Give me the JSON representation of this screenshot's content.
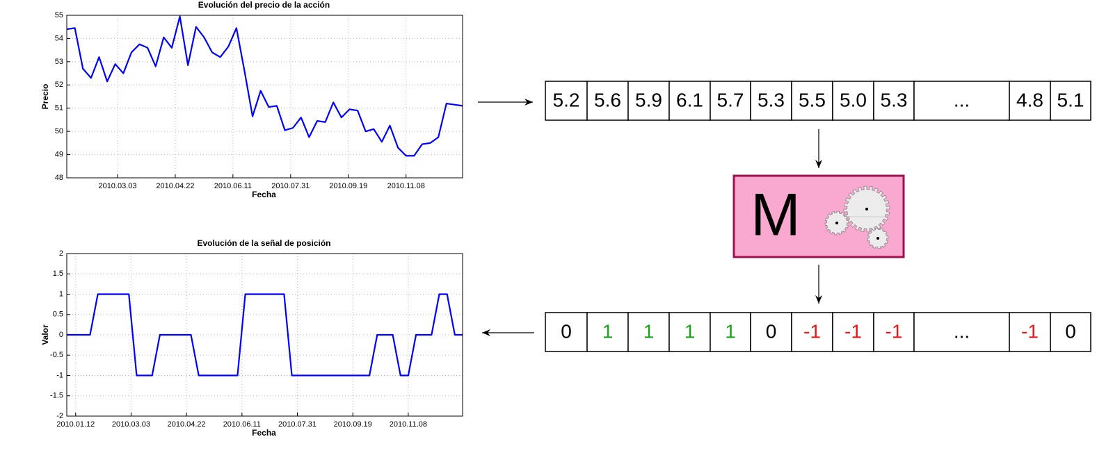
{
  "chart_data": [
    {
      "type": "line",
      "title": "Evolución del precio de la acción",
      "xlabel": "Fecha",
      "ylabel": "Precio",
      "color": "#0000ff",
      "grid": true,
      "x": [
        "2010.01.18",
        "2010.01.25",
        "2010.02.01",
        "2010.02.08",
        "2010.02.15",
        "2010.02.22",
        "2010.03.01",
        "2010.03.08",
        "2010.03.15",
        "2010.03.22",
        "2010.03.29",
        "2010.04.05",
        "2010.04.12",
        "2010.04.19",
        "2010.04.26",
        "2010.05.03",
        "2010.05.10",
        "2010.05.17",
        "2010.05.24",
        "2010.05.31",
        "2010.06.07",
        "2010.06.14",
        "2010.06.21",
        "2010.06.28",
        "2010.07.05",
        "2010.07.12",
        "2010.07.19",
        "2010.07.26",
        "2010.08.02",
        "2010.08.09",
        "2010.08.16",
        "2010.08.23",
        "2010.08.30",
        "2010.09.06",
        "2010.09.13",
        "2010.09.20",
        "2010.09.27",
        "2010.10.04",
        "2010.10.11",
        "2010.10.18",
        "2010.10.25",
        "2010.11.01",
        "2010.11.08",
        "2010.11.15",
        "2010.11.22",
        "2010.11.29",
        "2010.12.06",
        "2010.12.13",
        "2010.12.20",
        "2010.12.27"
      ],
      "values": [
        54.4,
        54.45,
        52.7,
        52.3,
        53.2,
        52.15,
        52.9,
        52.5,
        53.4,
        53.75,
        53.6,
        52.8,
        54.05,
        53.6,
        54.95,
        52.85,
        54.5,
        54.05,
        53.4,
        53.2,
        53.65,
        54.45,
        52.6,
        50.65,
        51.75,
        51.05,
        51.1,
        50.05,
        50.15,
        50.6,
        49.75,
        50.45,
        50.4,
        51.25,
        50.6,
        50.95,
        50.9,
        50.0,
        50.1,
        49.55,
        50.25,
        49.3,
        48.95,
        48.95,
        49.45,
        49.5,
        49.75,
        51.2,
        51.15,
        51.1
      ],
      "xlim": [
        "2010.01.18",
        "2010.12.27"
      ],
      "xticks": [
        "2010.03.03",
        "2010.04.22",
        "2010.06.11",
        "2010.07.31",
        "2010.09.19",
        "2010.11.08"
      ],
      "ylim": [
        48,
        55
      ],
      "yticks": [
        48,
        49,
        50,
        51,
        52,
        53,
        54,
        55
      ]
    },
    {
      "type": "line",
      "title": "Evolución de la señal de posición",
      "xlabel": "Fecha",
      "ylabel": "Valor",
      "color": "#0000ff",
      "grid": true,
      "x": [
        "2010.01.04",
        "2010.01.11",
        "2010.01.18",
        "2010.01.25",
        "2010.02.01",
        "2010.02.08",
        "2010.02.15",
        "2010.02.22",
        "2010.03.01",
        "2010.03.08",
        "2010.03.15",
        "2010.03.22",
        "2010.03.29",
        "2010.04.05",
        "2010.04.12",
        "2010.04.19",
        "2010.04.26",
        "2010.05.03",
        "2010.05.10",
        "2010.05.17",
        "2010.05.24",
        "2010.05.31",
        "2010.06.07",
        "2010.06.14",
        "2010.06.21",
        "2010.06.28",
        "2010.07.05",
        "2010.07.12",
        "2010.07.19",
        "2010.07.26",
        "2010.08.02",
        "2010.08.09",
        "2010.08.16",
        "2010.08.23",
        "2010.08.30",
        "2010.09.06",
        "2010.09.13",
        "2010.09.20",
        "2010.09.27",
        "2010.10.04",
        "2010.10.11",
        "2010.10.18",
        "2010.10.25",
        "2010.11.01",
        "2010.11.08",
        "2010.11.15",
        "2010.11.22",
        "2010.11.29",
        "2010.12.06",
        "2010.12.13",
        "2010.12.20",
        "2010.12.27"
      ],
      "values": [
        0,
        0,
        0,
        0,
        1,
        1,
        1,
        1,
        1,
        -1,
        -1,
        -1,
        0,
        0,
        0,
        0,
        0,
        -1,
        -1,
        -1,
        -1,
        -1,
        -1,
        1,
        1,
        1,
        1,
        1,
        1,
        -1,
        -1,
        -1,
        -1,
        -1,
        -1,
        -1,
        -1,
        -1,
        -1,
        -1,
        0,
        0,
        0,
        -1,
        -1,
        0,
        0,
        0,
        1,
        1,
        0,
        0
      ],
      "xlim": [
        "2010.01.04",
        "2010.12.27"
      ],
      "xticks": [
        "2010.01.12",
        "2010.03.03",
        "2010.04.22",
        "2010.06.11",
        "2010.07.31",
        "2010.09.19",
        "2010.11.08"
      ],
      "ylim": [
        -2,
        2
      ],
      "yticks": [
        -2,
        -1.5,
        -1,
        -0.5,
        0,
        0.5,
        1,
        1.5,
        2
      ]
    }
  ],
  "input_array": {
    "cells": [
      "5.2",
      "5.6",
      "5.9",
      "6.1",
      "5.7",
      "5.3",
      "5.5",
      "5.0",
      "5.3",
      "...",
      "4.8",
      "5.1"
    ]
  },
  "model": {
    "label": "M"
  },
  "output_array": {
    "cells": [
      "0",
      "1",
      "1",
      "1",
      "1",
      "0",
      "-1",
      "-1",
      "-1",
      "...",
      "-1",
      "0"
    ],
    "value_colors": {
      "0": "#000000",
      "1": "#1aa31a",
      "-1": "#e8161b",
      "...": "#000000"
    }
  }
}
